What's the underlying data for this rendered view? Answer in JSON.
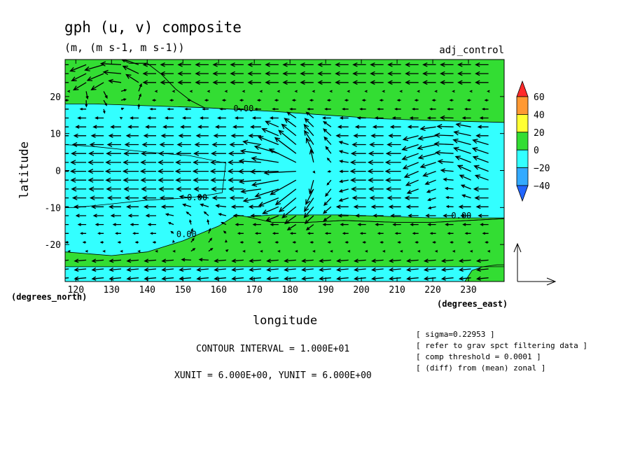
{
  "chart_data": {
    "type": "vector-contour",
    "title": "gph (u, v) composite",
    "units": "(m, (m s-1, m s-1))",
    "run_label": "adj_control",
    "xlabel": "longitude",
    "ylabel": "latitude",
    "x_unit_label": "(degrees_east)",
    "y_unit_label": "(degrees_north)",
    "xlim": [
      117,
      240
    ],
    "ylim": [
      -30,
      30
    ],
    "x_ticks": [
      120,
      130,
      140,
      150,
      160,
      170,
      180,
      190,
      200,
      210,
      220,
      230
    ],
    "x_tick_labels": [
      "120",
      "130",
      "140",
      "150",
      "160",
      "170",
      "180",
      "190",
      "200",
      "210",
      "220",
      "230"
    ],
    "y_ticks": [
      20,
      10,
      0,
      -10,
      -20
    ],
    "y_tick_labels": [
      "20",
      "10",
      "0",
      "-10",
      "-20"
    ],
    "contour_labels": [
      {
        "text": "0.00",
        "x": 167,
        "y": 16
      },
      {
        "text": "0.00",
        "x": 154,
        "y": -8
      },
      {
        "text": "0.00",
        "x": 151,
        "y": -18
      },
      {
        "text": "0.00",
        "x": 228,
        "y": -13
      }
    ],
    "colorbar": {
      "levels": [
        60,
        40,
        20,
        0,
        -20,
        -40
      ],
      "level_labels": [
        "60",
        "40",
        "20",
        "0",
        "−20",
        "−40"
      ],
      "colors": [
        "#ff2a2a",
        "#ff9933",
        "#ffff33",
        "#33dd33",
        "#33ffff",
        "#33aaff",
        "#2266ff"
      ]
    },
    "filled_regions": [
      {
        "value": "positive",
        "color": "#33dd33",
        "polygon": [
          [
            117,
            30
          ],
          [
            240,
            30
          ],
          [
            240,
            -30
          ],
          [
            117,
            -30
          ]
        ]
      },
      {
        "value": "negative",
        "color": "#33ffff",
        "polygon": [
          [
            117,
            30
          ],
          [
            133,
            30
          ],
          [
            135,
            29
          ],
          [
            140,
            29
          ],
          [
            144,
            26
          ],
          [
            148,
            22
          ],
          [
            152,
            19
          ],
          [
            156,
            17
          ],
          [
            165,
            16.5
          ],
          [
            175,
            16
          ],
          [
            190,
            15
          ],
          [
            205,
            14
          ],
          [
            220,
            13.5
          ],
          [
            240,
            13
          ],
          [
            240,
            -13
          ],
          [
            230,
            -13.5
          ],
          [
            220,
            -14
          ],
          [
            210,
            -14
          ],
          [
            195,
            -13.5
          ],
          [
            185,
            -14
          ],
          [
            175,
            -14
          ],
          [
            168,
            -12.5
          ],
          [
            165,
            -12
          ],
          [
            160,
            -15
          ],
          [
            150,
            -19
          ],
          [
            140,
            -22
          ],
          [
            130,
            -23
          ],
          [
            117,
            -22
          ],
          [
            117,
            -30
          ]
        ]
      },
      {
        "value": "negative",
        "color": "#33ffff",
        "polygon": [
          [
            117,
            7
          ],
          [
            125,
            6.5
          ],
          [
            140,
            5
          ],
          [
            152,
            4
          ],
          [
            162,
            2
          ],
          [
            161,
            -6
          ],
          [
            155,
            -7
          ],
          [
            150,
            -7.5
          ],
          [
            140,
            -8
          ],
          [
            130,
            -9
          ],
          [
            120,
            -10
          ],
          [
            117,
            -10
          ]
        ]
      },
      {
        "value": "negative",
        "color": "#33ffff",
        "polygon": [
          [
            117,
            -26
          ],
          [
            140,
            -26
          ],
          [
            180,
            -26
          ],
          [
            215,
            -26
          ],
          [
            230,
            -26
          ],
          [
            240,
            -26
          ],
          [
            240,
            -30
          ],
          [
            117,
            -30
          ]
        ]
      },
      {
        "value": "positive",
        "color": "#33dd33",
        "polygon": [
          [
            117,
            30
          ],
          [
            133,
            30
          ],
          [
            135,
            29
          ],
          [
            140,
            29
          ],
          [
            144,
            26
          ],
          [
            148,
            22
          ],
          [
            152,
            19
          ],
          [
            156,
            17
          ],
          [
            140,
            17.5
          ],
          [
            125,
            18
          ],
          [
            117,
            18
          ]
        ]
      },
      {
        "value": "positive",
        "color": "#33dd33",
        "polygon": [
          [
            229,
            -30
          ],
          [
            231,
            -27
          ],
          [
            234,
            -26
          ],
          [
            238,
            -25.5
          ],
          [
            240,
            -25.5
          ],
          [
            240,
            -30
          ]
        ]
      },
      {
        "value": "positive",
        "color": "#33dd33",
        "polygon": [
          [
            168,
            -12.5
          ],
          [
            175,
            -12
          ],
          [
            185,
            -12
          ],
          [
            195,
            -12
          ],
          [
            210,
            -12.5
          ],
          [
            220,
            -12.8
          ],
          [
            240,
            -12.8
          ],
          [
            240,
            -13
          ],
          [
            230,
            -13.5
          ],
          [
            220,
            -14
          ],
          [
            210,
            -14
          ],
          [
            195,
            -13.5
          ],
          [
            185,
            -14
          ],
          [
            175,
            -14
          ]
        ]
      }
    ],
    "vector_field": {
      "description": "wind vectors (u, v)",
      "x_range": [
        118,
        239
      ],
      "y_range": [
        -29,
        29
      ],
      "x_unit": "6.000E+00",
      "y_unit": "6.000E+00"
    },
    "contour_interval_text": "CONTOUR INTERVAL = 1.000E+01",
    "unit_vector_text": "XUNIT = 6.000E+00, YUNIT = 6.000E+00",
    "info_lines": [
      "[ sigma=0.22953 ]",
      "[ refer to grav spct filtering data ]",
      "[ comp threshold = 0.0001 ]",
      "[ (diff) from (mean) zonal ]"
    ]
  }
}
